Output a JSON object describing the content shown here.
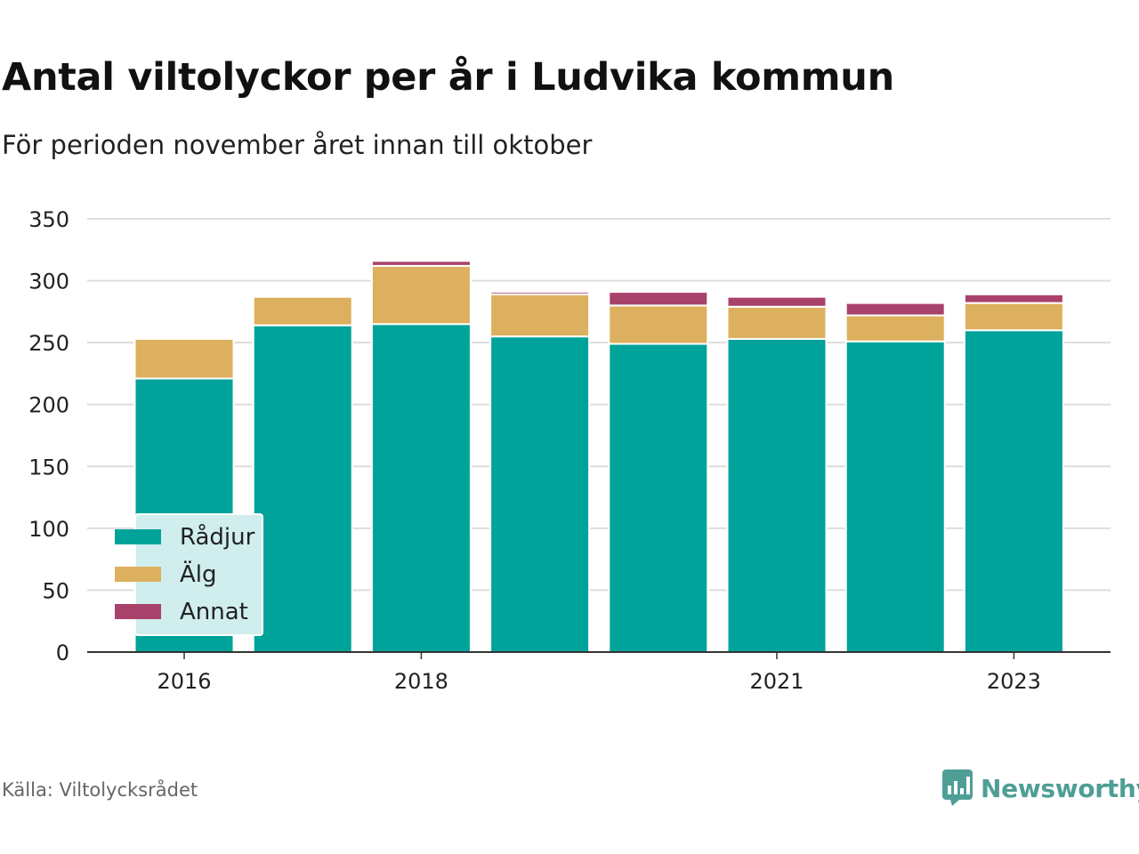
{
  "title": "Antal viltolyckor per år i Ludvika kommun",
  "subtitle": "För perioden november året innan till oktober",
  "source": "Källa: Viltolycksrådet",
  "brand": "Newsworthy",
  "colors": {
    "radjur": "#00a39a",
    "alg": "#dcb05e",
    "annat": "#a8426b",
    "grid": "#dddddd",
    "legend_bg": "#cfeeed",
    "brand": "#4f9e96"
  },
  "chart_data": {
    "type": "bar",
    "stacked": true,
    "categories": [
      "2016",
      "2017",
      "2018",
      "2019",
      "2020",
      "2021",
      "2022",
      "2023"
    ],
    "x_tick_labels": [
      "2016",
      "",
      "2018",
      "",
      "",
      "2021",
      "",
      "2023"
    ],
    "y_ticks": [
      0,
      50,
      100,
      150,
      200,
      250,
      300,
      350
    ],
    "ylim": [
      0,
      350
    ],
    "series": [
      {
        "name": "Rådjur",
        "values": [
          221,
          264,
          265,
          255,
          249,
          253,
          251,
          260
        ]
      },
      {
        "name": "Älg",
        "values": [
          32,
          23,
          47,
          34,
          31,
          26,
          21,
          22
        ]
      },
      {
        "name": "Annat",
        "values": [
          0,
          0,
          4,
          2,
          11,
          8,
          10,
          7
        ]
      }
    ],
    "legend_position": "bottom-left",
    "grid": true
  }
}
